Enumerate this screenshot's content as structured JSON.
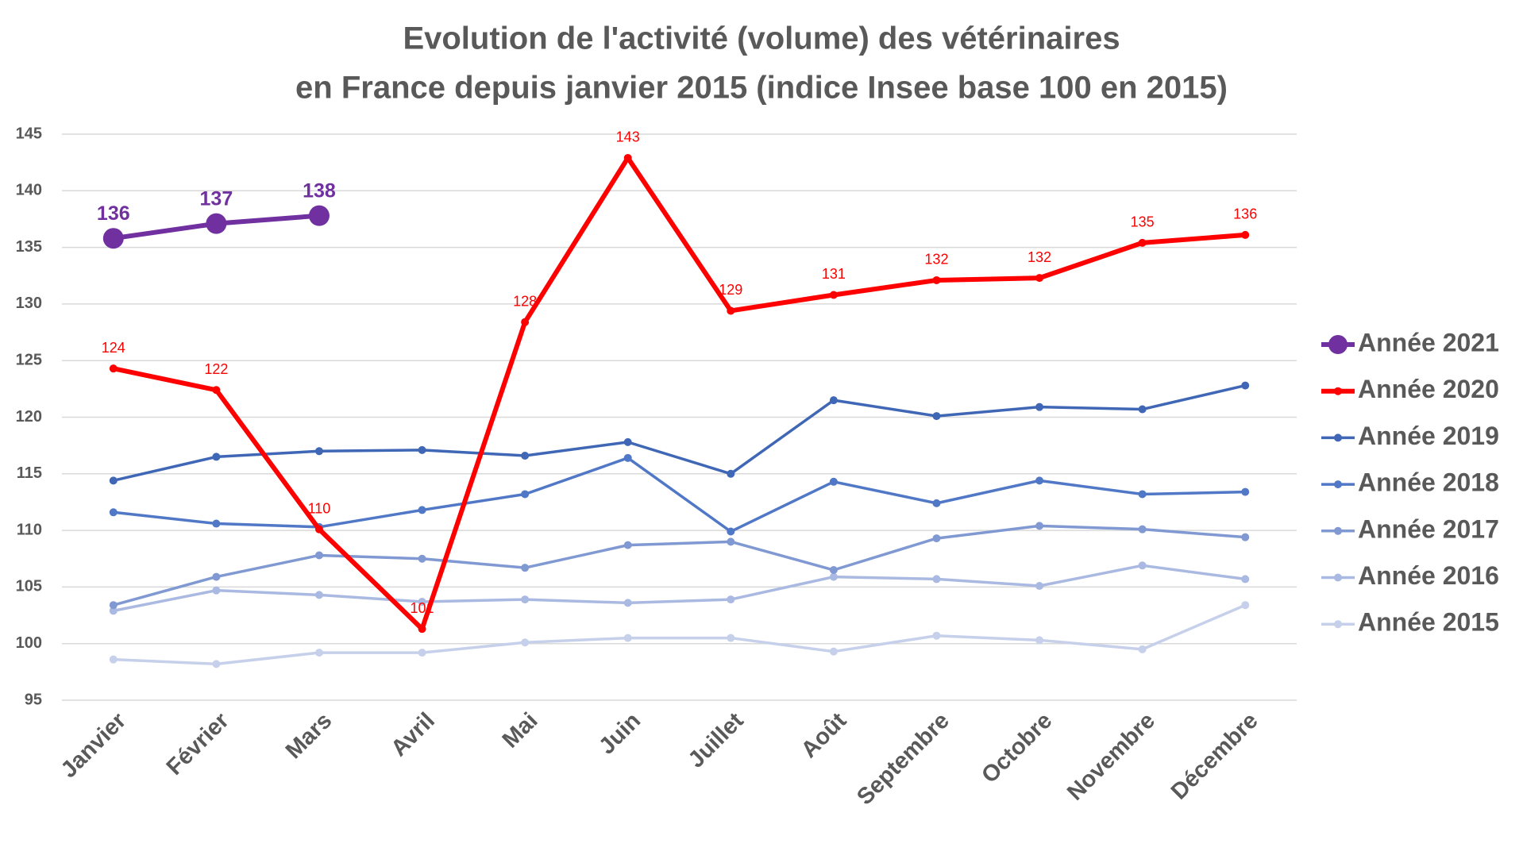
{
  "chart_data": {
    "type": "line",
    "title": [
      "Evolution de l'activité (volume) des vétérinaires",
      "en France depuis janvier 2015 (indice Insee base 100 en 2015)"
    ],
    "categories": [
      "Janvier",
      "Février",
      "Mars",
      "Avril",
      "Mai",
      "Juin",
      "Juillet",
      "Août",
      "Septembre",
      "Octobre",
      "Novembre",
      "Décembre"
    ],
    "ylim": [
      95,
      145
    ],
    "yticks": [
      95,
      100,
      105,
      110,
      115,
      120,
      125,
      130,
      135,
      140,
      145
    ],
    "grid": true,
    "legend": "right",
    "series": [
      {
        "name": "Année 2021",
        "color": "#7030a0",
        "values": [
          135.8,
          137.1,
          137.8,
          null,
          null,
          null,
          null,
          null,
          null,
          null,
          null,
          null
        ],
        "value_labels": [
          "136",
          "137",
          "138",
          null,
          null,
          null,
          null,
          null,
          null,
          null,
          null,
          null
        ]
      },
      {
        "name": "Année 2020",
        "color": "#ff0000",
        "values": [
          124.3,
          122.4,
          110.1,
          101.3,
          128.4,
          142.9,
          129.4,
          130.8,
          132.1,
          132.3,
          135.4,
          136.1
        ],
        "value_labels": [
          "124",
          "122",
          "110",
          "101",
          "128",
          "143",
          "129",
          "131",
          "132",
          "132",
          "135",
          "136"
        ]
      },
      {
        "name": "Année 2019",
        "color": "#3f67b5",
        "values": [
          114.4,
          116.5,
          117.0,
          117.1,
          116.6,
          117.8,
          115.0,
          121.5,
          120.1,
          120.9,
          120.7,
          122.8
        ]
      },
      {
        "name": "Année 2018",
        "color": "#5078c6",
        "values": [
          111.6,
          110.6,
          110.3,
          111.8,
          113.2,
          116.4,
          109.9,
          114.3,
          112.4,
          114.4,
          113.2,
          113.4
        ]
      },
      {
        "name": "Année 2017",
        "color": "#8099d2",
        "values": [
          103.4,
          105.9,
          107.8,
          107.5,
          106.7,
          108.7,
          109.0,
          106.5,
          109.3,
          110.4,
          110.1,
          109.4
        ]
      },
      {
        "name": "Année 2016",
        "color": "#aab9e1",
        "values": [
          102.9,
          104.7,
          104.3,
          103.7,
          103.9,
          103.6,
          103.9,
          105.9,
          105.7,
          105.1,
          106.9,
          105.7
        ]
      },
      {
        "name": "Année 2015",
        "color": "#c6d0ea",
        "values": [
          98.6,
          98.2,
          99.2,
          99.2,
          100.1,
          100.5,
          100.5,
          99.3,
          100.7,
          100.3,
          99.5,
          103.4
        ]
      }
    ]
  }
}
